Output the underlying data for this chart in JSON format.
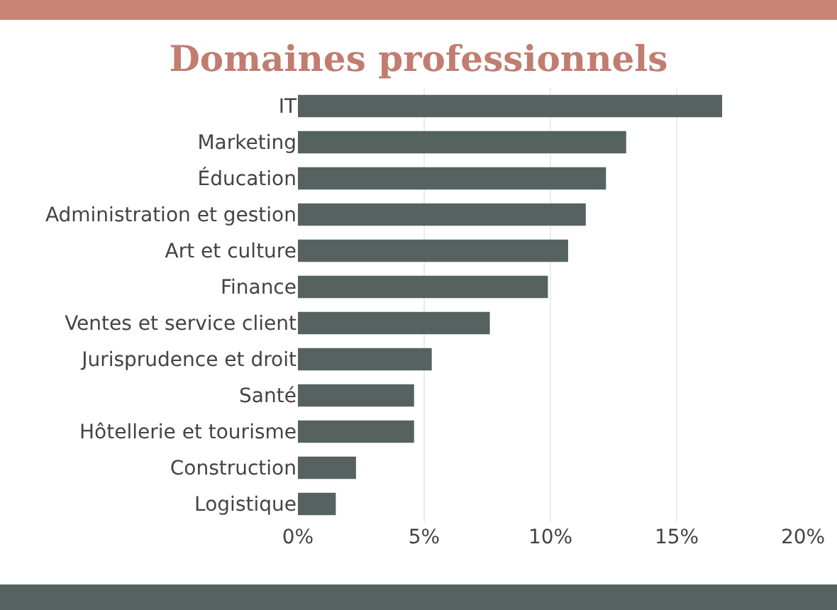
{
  "chart_data": {
    "type": "bar",
    "orientation": "horizontal",
    "title": "Domaines professionnels",
    "categories": [
      "IT",
      "Marketing",
      "Éducation",
      "Administration et gestion",
      "Art et culture",
      "Finance",
      "Ventes et service client",
      "Jurisprudence et droit",
      "Santé",
      "Hôtellerie et tourisme",
      "Construction",
      "Logistique"
    ],
    "values": [
      16.8,
      13.0,
      12.2,
      11.4,
      10.7,
      9.9,
      7.6,
      5.3,
      4.6,
      4.6,
      2.3,
      1.5
    ],
    "color": "#56625f",
    "xlim": [
      0,
      20
    ],
    "xticks": [
      {
        "value": 0,
        "label": "0%"
      },
      {
        "value": 5,
        "label": "5%"
      },
      {
        "value": 10,
        "label": "10%"
      },
      {
        "value": 15,
        "label": "15%"
      },
      {
        "value": 20,
        "label": "20%"
      }
    ],
    "grid": "x"
  }
}
